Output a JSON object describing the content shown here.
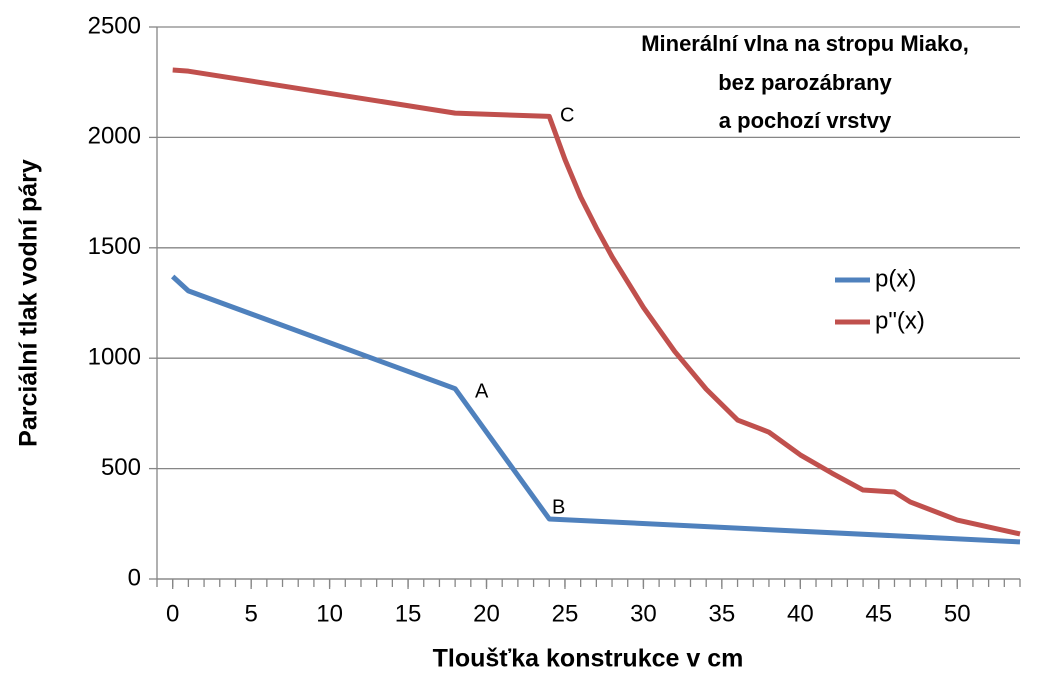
{
  "chart_data": {
    "type": "line",
    "title": [
      "Minerální vlna na stropu Miako,",
      "bez parozábrany",
      "a pochozí vrstvy"
    ],
    "x_label": "Tloušťka konstrukce v cm",
    "y_label": "Parciální tlak vodní páry",
    "series": [
      {
        "name": "p(x)",
        "color": "#4f81bd",
        "x": [
          0,
          1,
          18,
          24,
          54
        ],
        "values": [
          1370,
          1305,
          862,
          272,
          168
        ]
      },
      {
        "name": "p\"(x)",
        "color": "#c0504d",
        "x": [
          0,
          1,
          18,
          24,
          25,
          26,
          27,
          28,
          30,
          32,
          34,
          36,
          38,
          40,
          42,
          44,
          46,
          47,
          50,
          54
        ],
        "values": [
          2305,
          2300,
          2110,
          2095,
          1900,
          1730,
          1590,
          1460,
          1230,
          1030,
          860,
          720,
          665,
          562,
          480,
          403,
          394,
          349,
          267,
          204
        ]
      }
    ],
    "annotations": [
      "A",
      "B",
      "C"
    ],
    "xlim": [
      -1,
      54
    ],
    "xticks": [
      0,
      5,
      10,
      15,
      20,
      25,
      30,
      35,
      40,
      45,
      50
    ],
    "ylim": [
      0,
      2500
    ],
    "yticks": [
      0,
      500,
      1000,
      1500,
      2000,
      2500
    ],
    "grid": true,
    "legend": "right"
  }
}
